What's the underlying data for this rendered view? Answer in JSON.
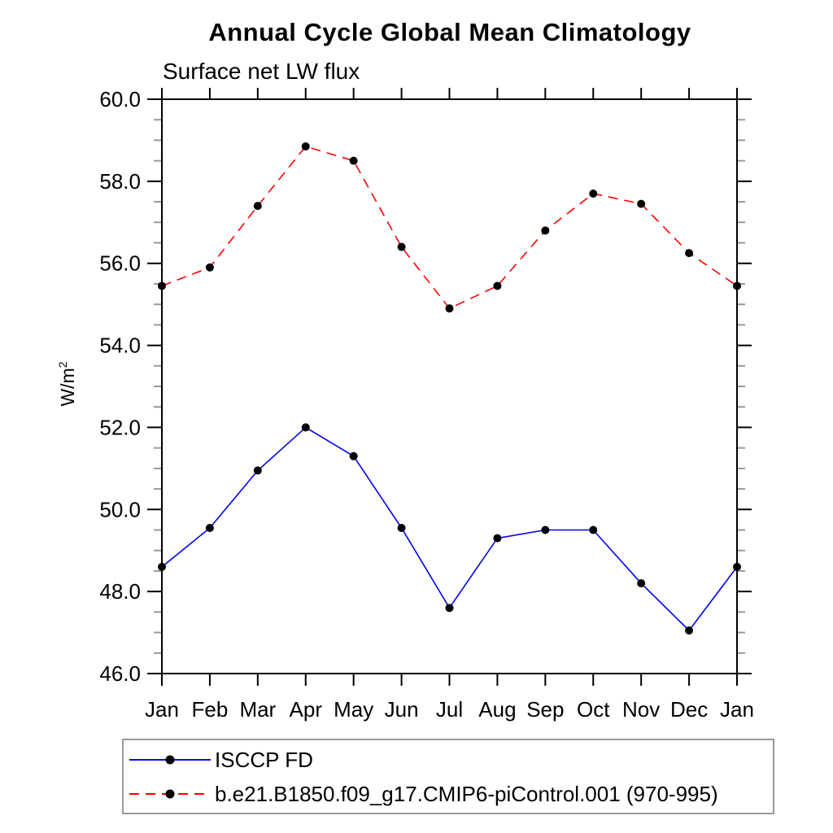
{
  "header": {
    "title": "Annual Cycle Global Mean Climatology",
    "subtitle": "Surface net LW flux"
  },
  "y_axis": {
    "label_base": "W/m",
    "label_exponent": "2",
    "tick_labels": [
      "60.0",
      "58.0",
      "56.0",
      "54.0",
      "52.0",
      "50.0",
      "48.0",
      "46.0"
    ]
  },
  "x_axis": {
    "tick_labels": [
      "Jan",
      "Feb",
      "Mar",
      "Apr",
      "May",
      "Jun",
      "Jul",
      "Aug",
      "Sep",
      "Oct",
      "Nov",
      "Dec",
      "Jan"
    ]
  },
  "legend": {
    "items": [
      {
        "label": "ISCCP FD"
      },
      {
        "label": "b.e21.B1850.f09_g17.CMIP6-piControl.001 (970-995)"
      }
    ]
  },
  "chart_data": {
    "type": "line",
    "title": "Annual Cycle Global Mean Climatology",
    "subtitle": "Surface net LW flux",
    "xlabel": "",
    "ylabel": "W/m²",
    "categories": [
      "Jan",
      "Feb",
      "Mar",
      "Apr",
      "May",
      "Jun",
      "Jul",
      "Aug",
      "Sep",
      "Oct",
      "Nov",
      "Dec",
      "Jan"
    ],
    "series": [
      {
        "name": "ISCCP FD",
        "color": "#0000ee",
        "line_style": "solid",
        "dash": "none",
        "marker": "filled-circle",
        "marker_color": "#000000",
        "values": [
          48.6,
          49.55,
          50.95,
          52.0,
          51.3,
          49.55,
          47.6,
          49.3,
          49.5,
          49.5,
          48.2,
          47.05,
          48.6
        ]
      },
      {
        "name": "b.e21.B1850.f09_g17.CMIP6-piControl.001 (970-995)",
        "color": "#ff0000",
        "line_style": "dashed",
        "dash": "12 8",
        "marker": "filled-circle",
        "marker_color": "#000000",
        "values": [
          55.45,
          55.9,
          57.4,
          58.85,
          58.5,
          56.4,
          54.9,
          55.45,
          56.8,
          57.7,
          57.45,
          56.25,
          55.45
        ]
      }
    ],
    "ylim": [
      46.0,
      60.0
    ],
    "ytick_major_step": 2.0,
    "ytick_minor_step": 0.5,
    "grid": false,
    "legend_position": "bottom"
  }
}
